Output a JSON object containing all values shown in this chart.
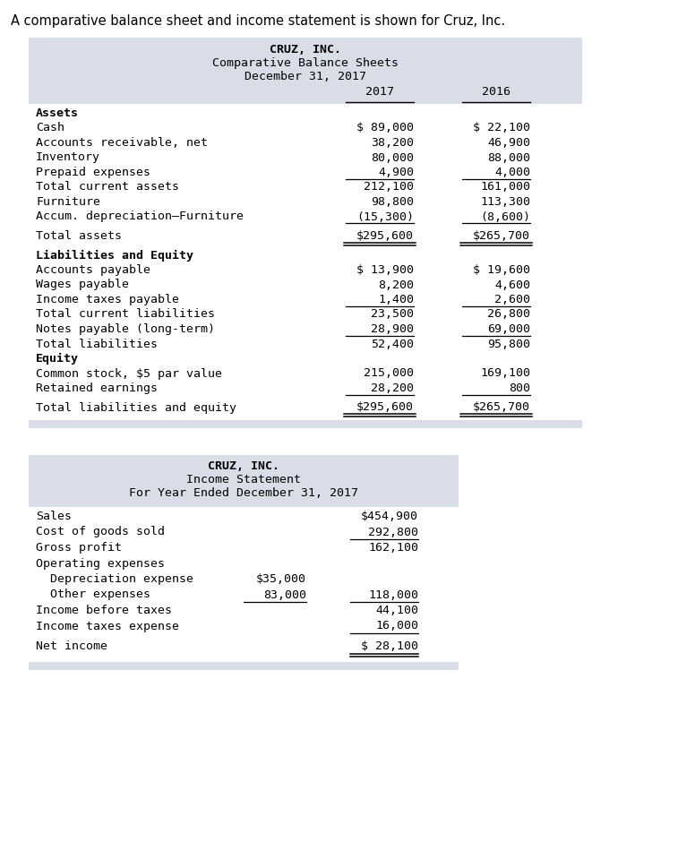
{
  "page_title": "A comparative balance sheet and income statement is shown for Cruz, Inc.",
  "bg_color": "#ffffff",
  "table_bg": "#d8dde8",
  "table_inner_bg": "#ffffff",
  "bs_title": [
    "CRUZ, INC.",
    "Comparative Balance Sheets",
    "December 31, 2017"
  ],
  "bs_rows": [
    {
      "label": "Assets",
      "v2017": "",
      "v2016": "",
      "bold": true,
      "line_below": false,
      "double_below": false,
      "spacer_above": false
    },
    {
      "label": "Cash",
      "v2017": "$ 89,000",
      "v2016": "$ 22,100",
      "bold": false,
      "line_below": false,
      "double_below": false,
      "spacer_above": false
    },
    {
      "label": "Accounts receivable, net",
      "v2017": "38,200",
      "v2016": "46,900",
      "bold": false,
      "line_below": false,
      "double_below": false,
      "spacer_above": false
    },
    {
      "label": "Inventory",
      "v2017": "80,000",
      "v2016": "88,000",
      "bold": false,
      "line_below": false,
      "double_below": false,
      "spacer_above": false
    },
    {
      "label": "Prepaid expenses",
      "v2017": "4,900",
      "v2016": "4,000",
      "bold": false,
      "line_below": true,
      "double_below": false,
      "spacer_above": false
    },
    {
      "label": "Total current assets",
      "v2017": "212,100",
      "v2016": "161,000",
      "bold": false,
      "line_below": false,
      "double_below": false,
      "spacer_above": false
    },
    {
      "label": "Furniture",
      "v2017": "98,800",
      "v2016": "113,300",
      "bold": false,
      "line_below": false,
      "double_below": false,
      "spacer_above": false
    },
    {
      "label": "Accum. depreciation–Furniture",
      "v2017": "(15,300)",
      "v2016": "(8,600)",
      "bold": false,
      "line_below": true,
      "double_below": false,
      "spacer_above": false
    },
    {
      "label": "Total assets",
      "v2017": "$295,600",
      "v2016": "$265,700",
      "bold": false,
      "line_below": false,
      "double_below": true,
      "spacer_above": true
    },
    {
      "label": "Liabilities and Equity",
      "v2017": "",
      "v2016": "",
      "bold": true,
      "line_below": false,
      "double_below": false,
      "spacer_above": true
    },
    {
      "label": "Accounts payable",
      "v2017": "$ 13,900",
      "v2016": "$ 19,600",
      "bold": false,
      "line_below": false,
      "double_below": false,
      "spacer_above": false
    },
    {
      "label": "Wages payable",
      "v2017": "8,200",
      "v2016": "4,600",
      "bold": false,
      "line_below": false,
      "double_below": false,
      "spacer_above": false
    },
    {
      "label": "Income taxes payable",
      "v2017": "1,400",
      "v2016": "2,600",
      "bold": false,
      "line_below": true,
      "double_below": false,
      "spacer_above": false
    },
    {
      "label": "Total current liabilities",
      "v2017": "23,500",
      "v2016": "26,800",
      "bold": false,
      "line_below": false,
      "double_below": false,
      "spacer_above": false
    },
    {
      "label": "Notes payable (long-term)",
      "v2017": "28,900",
      "v2016": "69,000",
      "bold": false,
      "line_below": true,
      "double_below": false,
      "spacer_above": false
    },
    {
      "label": "Total liabilities",
      "v2017": "52,400",
      "v2016": "95,800",
      "bold": false,
      "line_below": false,
      "double_below": false,
      "spacer_above": false
    },
    {
      "label": "Equity",
      "v2017": "",
      "v2016": "",
      "bold": true,
      "line_below": false,
      "double_below": false,
      "spacer_above": false
    },
    {
      "label": "Common stock, $5 par value",
      "v2017": "215,000",
      "v2016": "169,100",
      "bold": false,
      "line_below": false,
      "double_below": false,
      "spacer_above": false
    },
    {
      "label": "Retained earnings",
      "v2017": "28,200",
      "v2016": "800",
      "bold": false,
      "line_below": true,
      "double_below": false,
      "spacer_above": false
    },
    {
      "label": "Total liabilities and equity",
      "v2017": "$295,600",
      "v2016": "$265,700",
      "bold": false,
      "line_below": false,
      "double_below": true,
      "spacer_above": true
    }
  ],
  "is_title": [
    "CRUZ, INC.",
    "Income Statement",
    "For Year Ended December 31, 2017"
  ],
  "is_rows": [
    {
      "label": "Sales",
      "vcol1": "",
      "vcol2": "$454,900",
      "line_below_c1": false,
      "line_below_c2": false,
      "double_below": false,
      "spacer_above": false
    },
    {
      "label": "Cost of goods sold",
      "vcol1": "",
      "vcol2": "292,800",
      "line_below_c1": false,
      "line_below_c2": true,
      "double_below": false,
      "spacer_above": false
    },
    {
      "label": "Gross profit",
      "vcol1": "",
      "vcol2": "162,100",
      "line_below_c1": false,
      "line_below_c2": false,
      "double_below": false,
      "spacer_above": false
    },
    {
      "label": "Operating expenses",
      "vcol1": "",
      "vcol2": "",
      "line_below_c1": false,
      "line_below_c2": false,
      "double_below": false,
      "spacer_above": false
    },
    {
      "label": "  Depreciation expense",
      "vcol1": "$35,000",
      "vcol2": "",
      "line_below_c1": false,
      "line_below_c2": false,
      "double_below": false,
      "spacer_above": false
    },
    {
      "label": "  Other expenses",
      "vcol1": "83,000",
      "vcol2": "118,000",
      "line_below_c1": true,
      "line_below_c2": true,
      "double_below": false,
      "spacer_above": false
    },
    {
      "label": "Income before taxes",
      "vcol1": "",
      "vcol2": "44,100",
      "line_below_c1": false,
      "line_below_c2": false,
      "double_below": false,
      "spacer_above": false
    },
    {
      "label": "Income taxes expense",
      "vcol1": "",
      "vcol2": "16,000",
      "line_below_c1": false,
      "line_below_c2": true,
      "double_below": false,
      "spacer_above": false
    },
    {
      "label": "Net income",
      "vcol1": "",
      "vcol2": "$ 28,100",
      "line_below_c1": false,
      "line_below_c2": false,
      "double_below": true,
      "spacer_above": true
    }
  ]
}
